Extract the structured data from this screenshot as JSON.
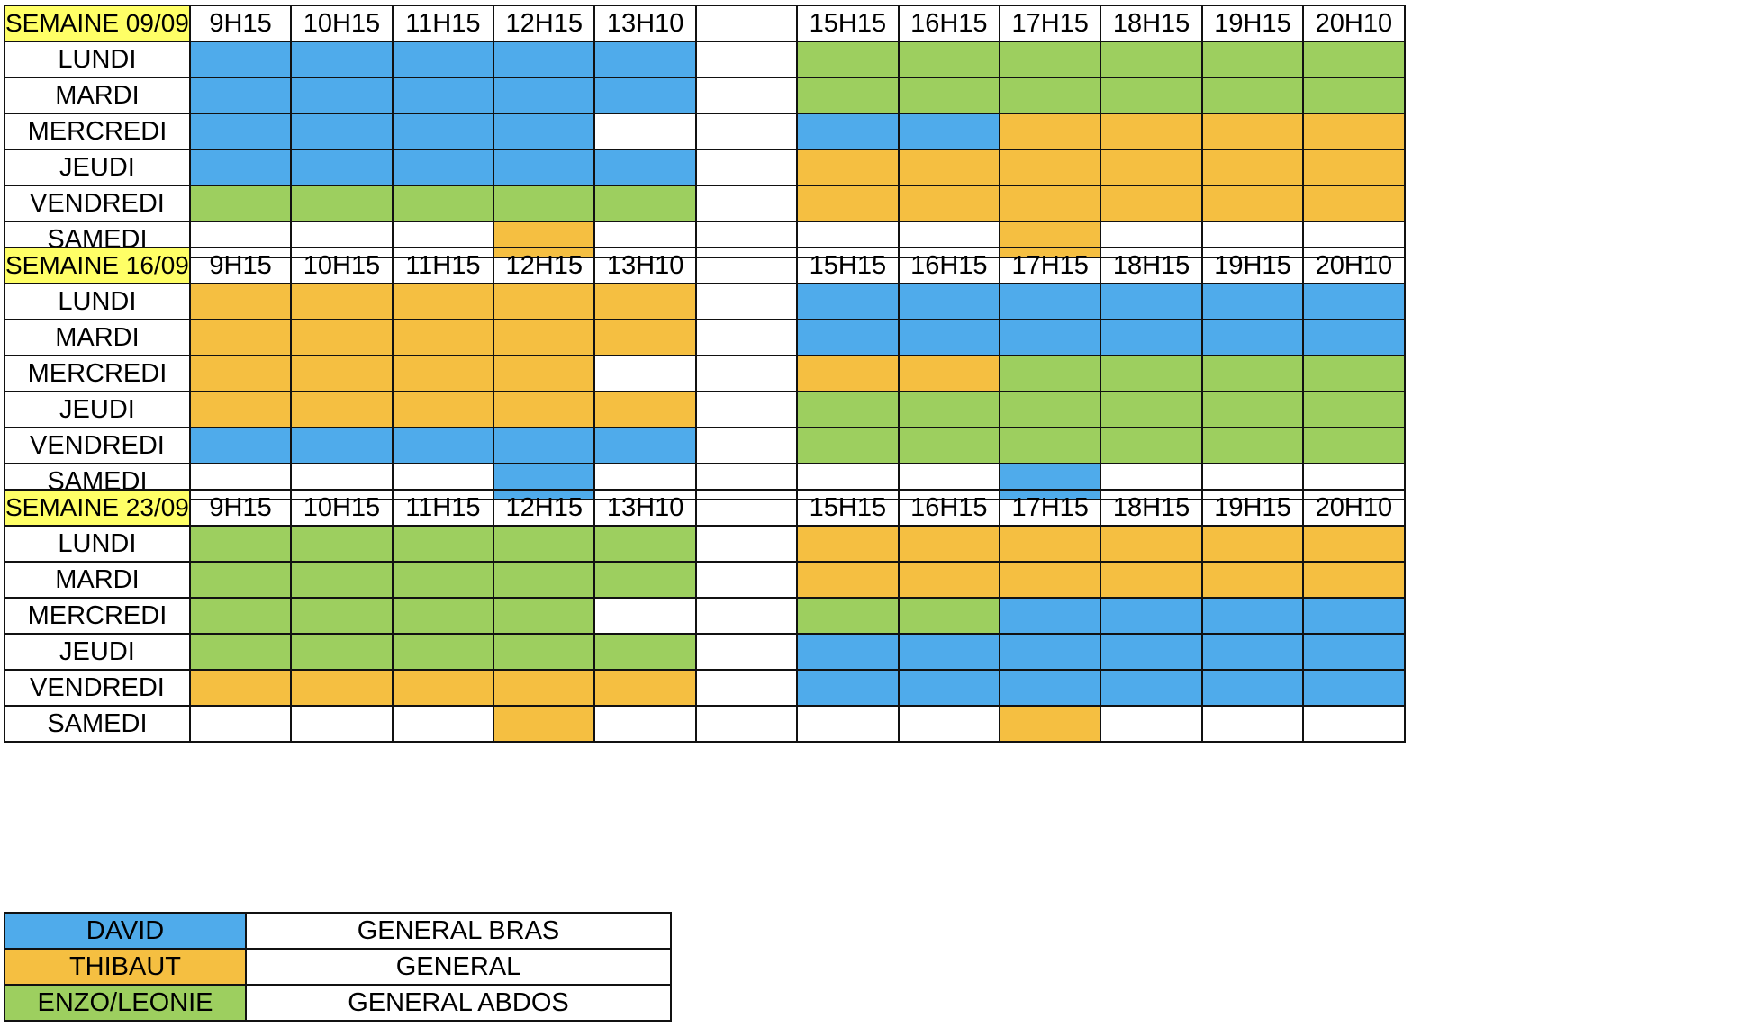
{
  "colors": {
    "header": "#ffff66",
    "DAVID": "#4fabeb",
    "THIBAUT": "#f5bf41",
    "ENZO/LEONIE": "#9dcf5f",
    "empty": "#ffffff"
  },
  "time_slots": [
    "9H15",
    "10H15",
    "11H15",
    "12H15",
    "13H10",
    "",
    "15H15",
    "16H15",
    "17H15",
    "18H15",
    "19H15",
    "20H10"
  ],
  "weeks": [
    {
      "title": "SEMAINE 09/09",
      "rows": [
        {
          "day": "LUNDI",
          "cells": [
            "DAVID",
            "DAVID",
            "DAVID",
            "DAVID",
            "DAVID",
            "",
            "ENZO/LEONIE",
            "ENZO/LEONIE",
            "ENZO/LEONIE",
            "ENZO/LEONIE",
            "ENZO/LEONIE",
            "ENZO/LEONIE"
          ]
        },
        {
          "day": "MARDI",
          "cells": [
            "DAVID",
            "DAVID",
            "DAVID",
            "DAVID",
            "DAVID",
            "",
            "ENZO/LEONIE",
            "ENZO/LEONIE",
            "ENZO/LEONIE",
            "ENZO/LEONIE",
            "ENZO/LEONIE",
            "ENZO/LEONIE"
          ]
        },
        {
          "day": "MERCREDI",
          "cells": [
            "DAVID",
            "DAVID",
            "DAVID",
            "DAVID",
            "",
            "",
            "DAVID",
            "DAVID",
            "THIBAUT",
            "THIBAUT",
            "THIBAUT",
            "THIBAUT"
          ]
        },
        {
          "day": "JEUDI",
          "cells": [
            "DAVID",
            "DAVID",
            "DAVID",
            "DAVID",
            "DAVID",
            "",
            "THIBAUT",
            "THIBAUT",
            "THIBAUT",
            "THIBAUT",
            "THIBAUT",
            "THIBAUT"
          ]
        },
        {
          "day": "VENDREDI",
          "cells": [
            "ENZO/LEONIE",
            "ENZO/LEONIE",
            "ENZO/LEONIE",
            "ENZO/LEONIE",
            "ENZO/LEONIE",
            "",
            "THIBAUT",
            "THIBAUT",
            "THIBAUT",
            "THIBAUT",
            "THIBAUT",
            "THIBAUT"
          ]
        },
        {
          "day": "SAMEDI",
          "cells": [
            "",
            "",
            "",
            "THIBAUT",
            "",
            "",
            "",
            "",
            "THIBAUT",
            "",
            "",
            ""
          ]
        }
      ]
    },
    {
      "title": "SEMAINE 16/09",
      "rows": [
        {
          "day": "LUNDI",
          "cells": [
            "THIBAUT",
            "THIBAUT",
            "THIBAUT",
            "THIBAUT",
            "THIBAUT",
            "",
            "DAVID",
            "DAVID",
            "DAVID",
            "DAVID",
            "DAVID",
            "DAVID"
          ]
        },
        {
          "day": "MARDI",
          "cells": [
            "THIBAUT",
            "THIBAUT",
            "THIBAUT",
            "THIBAUT",
            "THIBAUT",
            "",
            "DAVID",
            "DAVID",
            "DAVID",
            "DAVID",
            "DAVID",
            "DAVID"
          ]
        },
        {
          "day": "MERCREDI",
          "cells": [
            "THIBAUT",
            "THIBAUT",
            "THIBAUT",
            "THIBAUT",
            "",
            "",
            "THIBAUT",
            "THIBAUT",
            "ENZO/LEONIE",
            "ENZO/LEONIE",
            "ENZO/LEONIE",
            "ENZO/LEONIE"
          ]
        },
        {
          "day": "JEUDI",
          "cells": [
            "THIBAUT",
            "THIBAUT",
            "THIBAUT",
            "THIBAUT",
            "THIBAUT",
            "",
            "ENZO/LEONIE",
            "ENZO/LEONIE",
            "ENZO/LEONIE",
            "ENZO/LEONIE",
            "ENZO/LEONIE",
            "ENZO/LEONIE"
          ]
        },
        {
          "day": "VENDREDI",
          "cells": [
            "DAVID",
            "DAVID",
            "DAVID",
            "DAVID",
            "DAVID",
            "",
            "ENZO/LEONIE",
            "ENZO/LEONIE",
            "ENZO/LEONIE",
            "ENZO/LEONIE",
            "ENZO/LEONIE",
            "ENZO/LEONIE"
          ]
        },
        {
          "day": "SAMEDI",
          "cells": [
            "",
            "",
            "",
            "DAVID",
            "",
            "",
            "",
            "",
            "DAVID",
            "",
            "",
            ""
          ]
        }
      ]
    },
    {
      "title": "SEMAINE 23/09",
      "rows": [
        {
          "day": "LUNDI",
          "cells": [
            "ENZO/LEONIE",
            "ENZO/LEONIE",
            "ENZO/LEONIE",
            "ENZO/LEONIE",
            "ENZO/LEONIE",
            "",
            "THIBAUT",
            "THIBAUT",
            "THIBAUT",
            "THIBAUT",
            "THIBAUT",
            "THIBAUT"
          ]
        },
        {
          "day": "MARDI",
          "cells": [
            "ENZO/LEONIE",
            "ENZO/LEONIE",
            "ENZO/LEONIE",
            "ENZO/LEONIE",
            "ENZO/LEONIE",
            "",
            "THIBAUT",
            "THIBAUT",
            "THIBAUT",
            "THIBAUT",
            "THIBAUT",
            "THIBAUT"
          ]
        },
        {
          "day": "MERCREDI",
          "cells": [
            "ENZO/LEONIE",
            "ENZO/LEONIE",
            "ENZO/LEONIE",
            "ENZO/LEONIE",
            "",
            "",
            "ENZO/LEONIE",
            "ENZO/LEONIE",
            "DAVID",
            "DAVID",
            "DAVID",
            "DAVID"
          ]
        },
        {
          "day": "JEUDI",
          "cells": [
            "ENZO/LEONIE",
            "ENZO/LEONIE",
            "ENZO/LEONIE",
            "ENZO/LEONIE",
            "ENZO/LEONIE",
            "",
            "DAVID",
            "DAVID",
            "DAVID",
            "DAVID",
            "DAVID",
            "DAVID"
          ]
        },
        {
          "day": "VENDREDI",
          "cells": [
            "THIBAUT",
            "THIBAUT",
            "THIBAUT",
            "THIBAUT",
            "THIBAUT",
            "",
            "DAVID",
            "DAVID",
            "DAVID",
            "DAVID",
            "DAVID",
            "DAVID"
          ]
        },
        {
          "day": "SAMEDI",
          "cells": [
            "",
            "",
            "",
            "THIBAUT",
            "",
            "",
            "",
            "",
            "THIBAUT",
            "",
            "",
            ""
          ]
        }
      ]
    }
  ],
  "legend": [
    {
      "name": "DAVID",
      "description": "GENERAL BRAS"
    },
    {
      "name": "THIBAUT",
      "description": "GENERAL"
    },
    {
      "name": "ENZO/LEONIE",
      "description": "GENERAL ABDOS"
    }
  ]
}
